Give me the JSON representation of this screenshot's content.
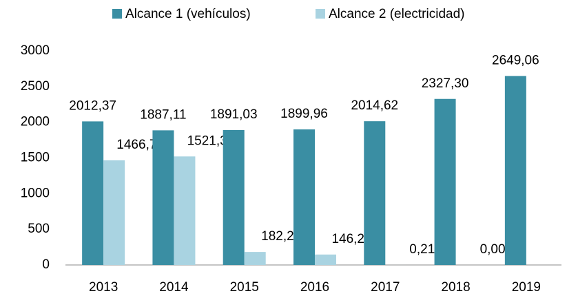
{
  "chart_data": {
    "type": "bar",
    "categories": [
      "2013",
      "2014",
      "2015",
      "2016",
      "2017",
      "2018",
      "2019"
    ],
    "series": [
      {
        "name": "Alcance 1 (vehículos)",
        "color": "#3a8ea3",
        "values": [
          2012.37,
          1887.11,
          1891.03,
          1899.96,
          2014.62,
          2327.3,
          2649.06
        ],
        "value_labels": [
          "2012,37",
          "1887,11",
          "1891,03",
          "1899,96",
          "2014,62",
          "2327,30",
          "2649,06"
        ]
      },
      {
        "name": "Alcance 2 (electricidad)",
        "color": "#a9d3e1",
        "values": [
          1466.75,
          1521.35,
          182.22,
          146.29,
          0.21,
          0.0,
          null
        ],
        "value_labels": [
          "1466,75",
          "1521,35",
          "182,22",
          "146,29",
          "0,21",
          "0,00",
          null
        ]
      }
    ],
    "ylim": [
      0,
      3000
    ],
    "yticks": [
      0,
      500,
      1000,
      1500,
      2000,
      2500,
      3000
    ],
    "grid": false,
    "legend": "top"
  }
}
